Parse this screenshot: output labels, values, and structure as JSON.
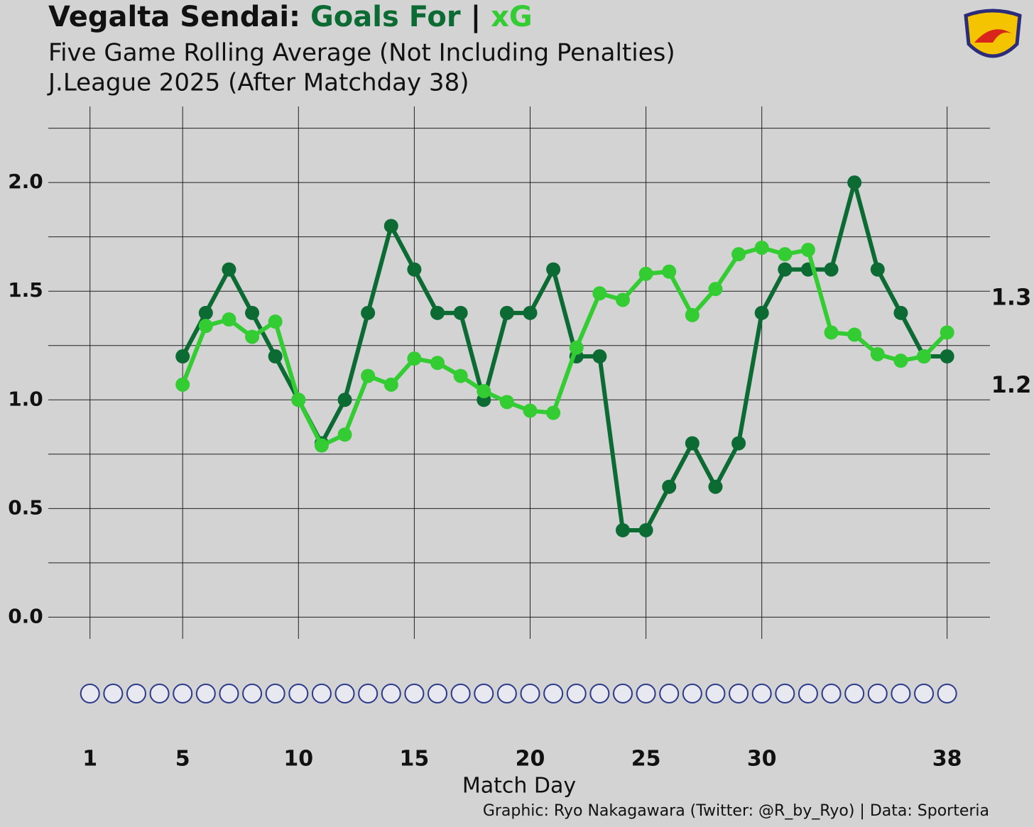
{
  "chart_data": {
    "type": "line",
    "title": "Vegalta Sendai:",
    "title_separator": "|",
    "subtitle": "Five Game Rolling Average (Not Including Penalties)",
    "subtitle2": "J.League 2025 (After Matchday 38)",
    "x_label": "Match Day",
    "caption": "Graphic: Ryo Nakagawara (Twitter: @R_by_Ryo) | Data: Sporteria",
    "x": [
      5,
      6,
      7,
      8,
      9,
      10,
      11,
      12,
      13,
      14,
      15,
      16,
      17,
      18,
      19,
      20,
      21,
      22,
      23,
      24,
      25,
      26,
      27,
      28,
      29,
      30,
      31,
      32,
      33,
      34,
      35,
      36,
      37,
      38
    ],
    "series": [
      {
        "name": "Goals For",
        "color": "#0b6b33",
        "values": [
          1.2,
          1.4,
          1.6,
          1.4,
          1.2,
          1.0,
          0.8,
          1.0,
          1.4,
          1.8,
          1.6,
          1.4,
          1.4,
          1.0,
          1.4,
          1.4,
          1.6,
          1.2,
          1.2,
          0.4,
          0.4,
          0.6,
          0.8,
          0.6,
          0.8,
          1.4,
          1.6,
          1.6,
          1.6,
          2.0,
          1.6,
          1.4,
          1.2,
          1.2
        ],
        "end_label": "1.2"
      },
      {
        "name": "xG",
        "color": "#33cc33",
        "values": [
          1.07,
          1.34,
          1.37,
          1.29,
          1.36,
          1.0,
          0.79,
          0.84,
          1.11,
          1.07,
          1.19,
          1.17,
          1.11,
          1.04,
          0.99,
          0.95,
          0.94,
          1.24,
          1.49,
          1.46,
          1.58,
          1.59,
          1.39,
          1.51,
          1.67,
          1.7,
          1.67,
          1.69,
          1.31,
          1.3,
          1.21,
          1.18,
          1.2,
          1.31
        ],
        "end_label": "1.3"
      }
    ],
    "xlim": [
      -0.8,
      39.85
    ],
    "ylim": [
      -0.1,
      2.35
    ],
    "xticks": [
      1,
      5,
      10,
      15,
      20,
      25,
      30,
      38
    ],
    "yticks": [
      {
        "value": 0,
        "label": "0.0"
      },
      0.5,
      {
        "value": 1,
        "label": "1.0"
      },
      1.5,
      {
        "value": 2,
        "label": "2.0"
      }
    ],
    "minor_yticks": [
      0.25,
      0.75,
      1.25,
      1.75,
      2.25
    ],
    "grid": true
  }
}
